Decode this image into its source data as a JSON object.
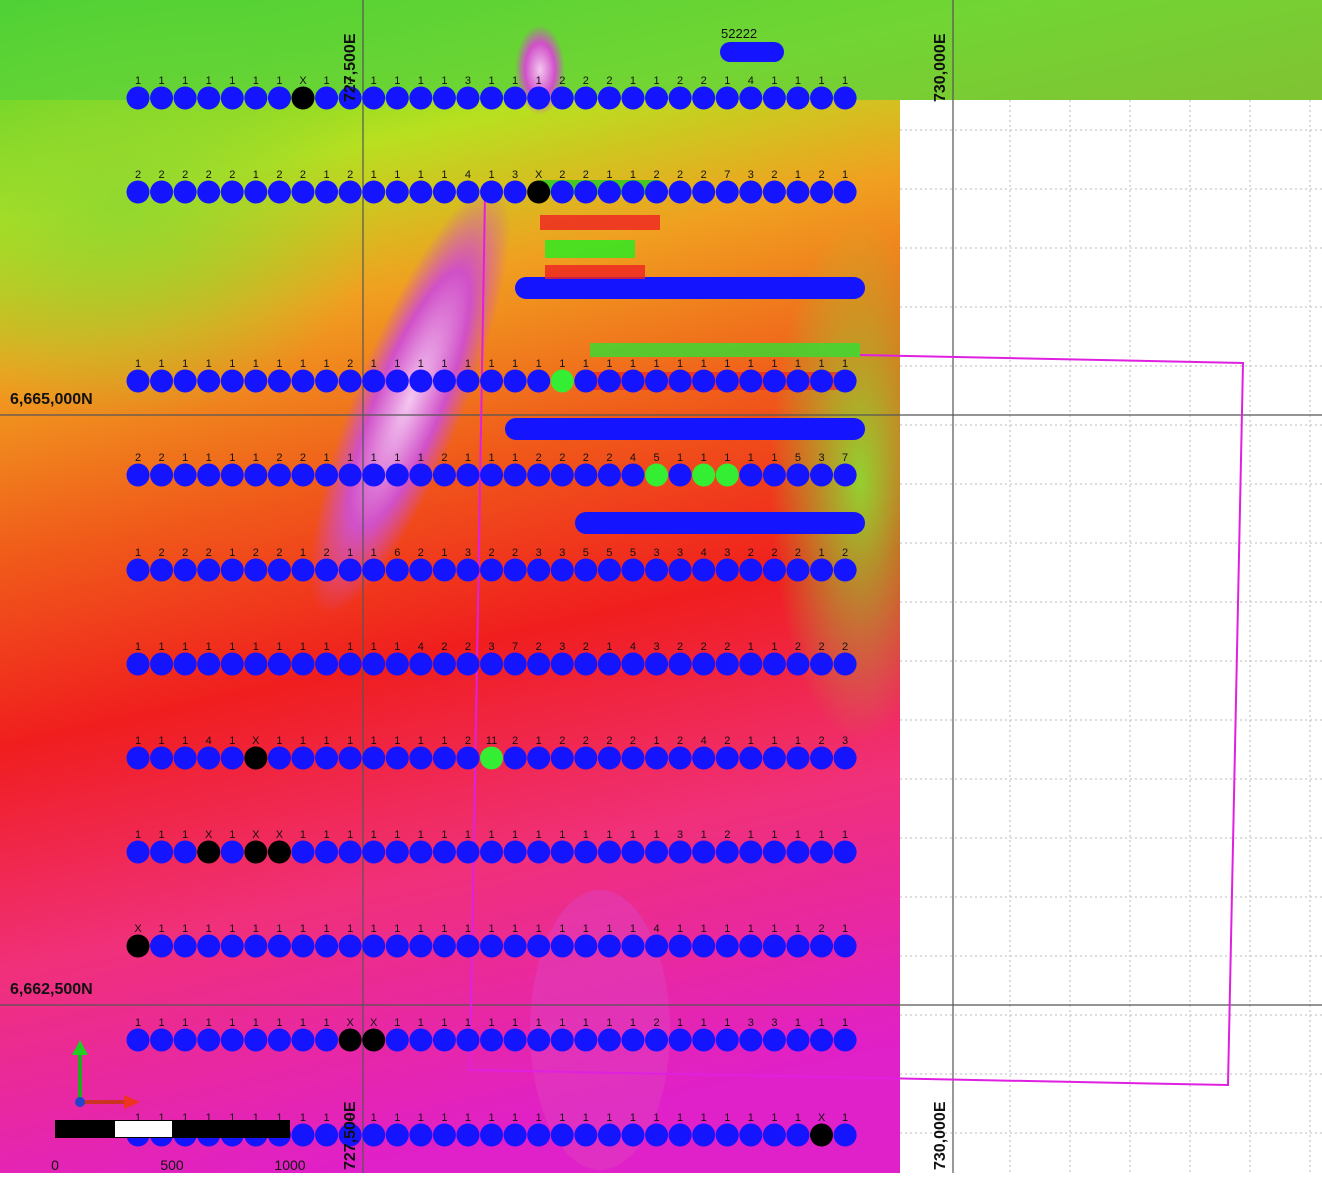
{
  "map": {
    "grid_labels": {
      "northing_top": "6,665,000N",
      "northing_bottom": "6,662,500N",
      "easting_left_top": "727,500E",
      "easting_left_bottom": "727,500E",
      "easting_right_top": "730,000E",
      "easting_right_bottom": "730,000E"
    },
    "scale_bar": {
      "labels": [
        "0",
        "500",
        "1000"
      ]
    },
    "annotation": "52222",
    "dot_color": "#1414ff",
    "missing_color": "#000000",
    "anomaly_color": "#33ee33",
    "rows": [
      {
        "labels": [
          "1",
          "1",
          "1",
          "1",
          "1",
          "1",
          "1",
          "X",
          "1",
          "1",
          "1",
          "1",
          "1",
          "1",
          "3",
          "1",
          "1",
          "1",
          "2",
          "2",
          "2",
          "1",
          "1",
          "2",
          "2",
          "1",
          "4",
          "1",
          "1",
          "1",
          "1"
        ],
        "anomalies": []
      },
      {
        "labels": [
          "2",
          "2",
          "2",
          "2",
          "2",
          "1",
          "2",
          "2",
          "1",
          "2",
          "1",
          "1",
          "1",
          "1",
          "4",
          "1",
          "3",
          "X",
          "2",
          "2",
          "1",
          "1",
          "2",
          "2",
          "2",
          "7",
          "3",
          "2",
          "1",
          "2",
          "1"
        ],
        "anomalies": []
      },
      {
        "labels": [
          "1",
          "1",
          "1",
          "1",
          "1",
          "1",
          "1",
          "1",
          "1",
          "2",
          "1",
          "1",
          "1",
          "1",
          "1",
          "1",
          "1",
          "1",
          "1",
          "1",
          "1",
          "1",
          "1",
          "1",
          "1",
          "1",
          "1",
          "1",
          "1",
          "1",
          "1"
        ],
        "anomalies": [
          18
        ]
      },
      {
        "labels": [
          "2",
          "2",
          "1",
          "1",
          "1",
          "1",
          "2",
          "2",
          "1",
          "1",
          "1",
          "1",
          "1",
          "2",
          "1",
          "1",
          "1",
          "2",
          "2",
          "2",
          "2",
          "4",
          "5",
          "1",
          "1",
          "1",
          "1",
          "1",
          "5",
          "3",
          "7"
        ],
        "anomalies": [
          22,
          24,
          25
        ]
      },
      {
        "labels": [
          "1",
          "2",
          "2",
          "2",
          "1",
          "2",
          "2",
          "1",
          "2",
          "1",
          "1",
          "6",
          "2",
          "1",
          "3",
          "2",
          "2",
          "3",
          "3",
          "5",
          "5",
          "5",
          "3",
          "3",
          "4",
          "3",
          "2",
          "2",
          "2",
          "1",
          "2"
        ],
        "anomalies": []
      },
      {
        "labels": [
          "1",
          "1",
          "1",
          "1",
          "1",
          "1",
          "1",
          "1",
          "1",
          "1",
          "1",
          "1",
          "4",
          "2",
          "2",
          "3",
          "7",
          "2",
          "3",
          "2",
          "1",
          "4",
          "3",
          "2",
          "2",
          "2",
          "1",
          "1",
          "2",
          "2",
          "2"
        ],
        "anomalies": []
      },
      {
        "labels": [
          "1",
          "1",
          "1",
          "4",
          "1",
          "X",
          "1",
          "1",
          "1",
          "1",
          "1",
          "1",
          "1",
          "1",
          "2",
          "11",
          "2",
          "1",
          "2",
          "2",
          "2",
          "2",
          "1",
          "2",
          "4",
          "2",
          "1",
          "1",
          "1",
          "2",
          "3"
        ],
        "anomalies": [
          15
        ]
      },
      {
        "labels": [
          "1",
          "1",
          "1",
          "X",
          "1",
          "X",
          "X",
          "1",
          "1",
          "1",
          "1",
          "1",
          "1",
          "1",
          "1",
          "1",
          "1",
          "1",
          "1",
          "1",
          "1",
          "1",
          "1",
          "3",
          "1",
          "2",
          "1",
          "1",
          "1",
          "1",
          "1"
        ],
        "anomalies": []
      },
      {
        "labels": [
          "X",
          "1",
          "1",
          "1",
          "1",
          "1",
          "1",
          "1",
          "1",
          "1",
          "1",
          "1",
          "1",
          "1",
          "1",
          "1",
          "1",
          "1",
          "1",
          "1",
          "1",
          "1",
          "4",
          "1",
          "1",
          "1",
          "1",
          "1",
          "1",
          "2",
          "1"
        ],
        "anomalies": []
      },
      {
        "labels": [
          "1",
          "1",
          "1",
          "1",
          "1",
          "1",
          "1",
          "1",
          "1",
          "X",
          "X",
          "1",
          "1",
          "1",
          "1",
          "1",
          "1",
          "1",
          "1",
          "1",
          "1",
          "1",
          "2",
          "1",
          "1",
          "1",
          "3",
          "3",
          "1",
          "1",
          "1"
        ],
        "anomalies": []
      },
      {
        "labels": [
          "1",
          "1",
          "1",
          "1",
          "1",
          "1",
          "1",
          "1",
          "1",
          "1",
          "1",
          "1",
          "1",
          "1",
          "1",
          "1",
          "1",
          "1",
          "1",
          "1",
          "1",
          "1",
          "1",
          "1",
          "1",
          "1",
          "1",
          "1",
          "1",
          "X",
          "1"
        ],
        "anomalies": []
      }
    ]
  }
}
